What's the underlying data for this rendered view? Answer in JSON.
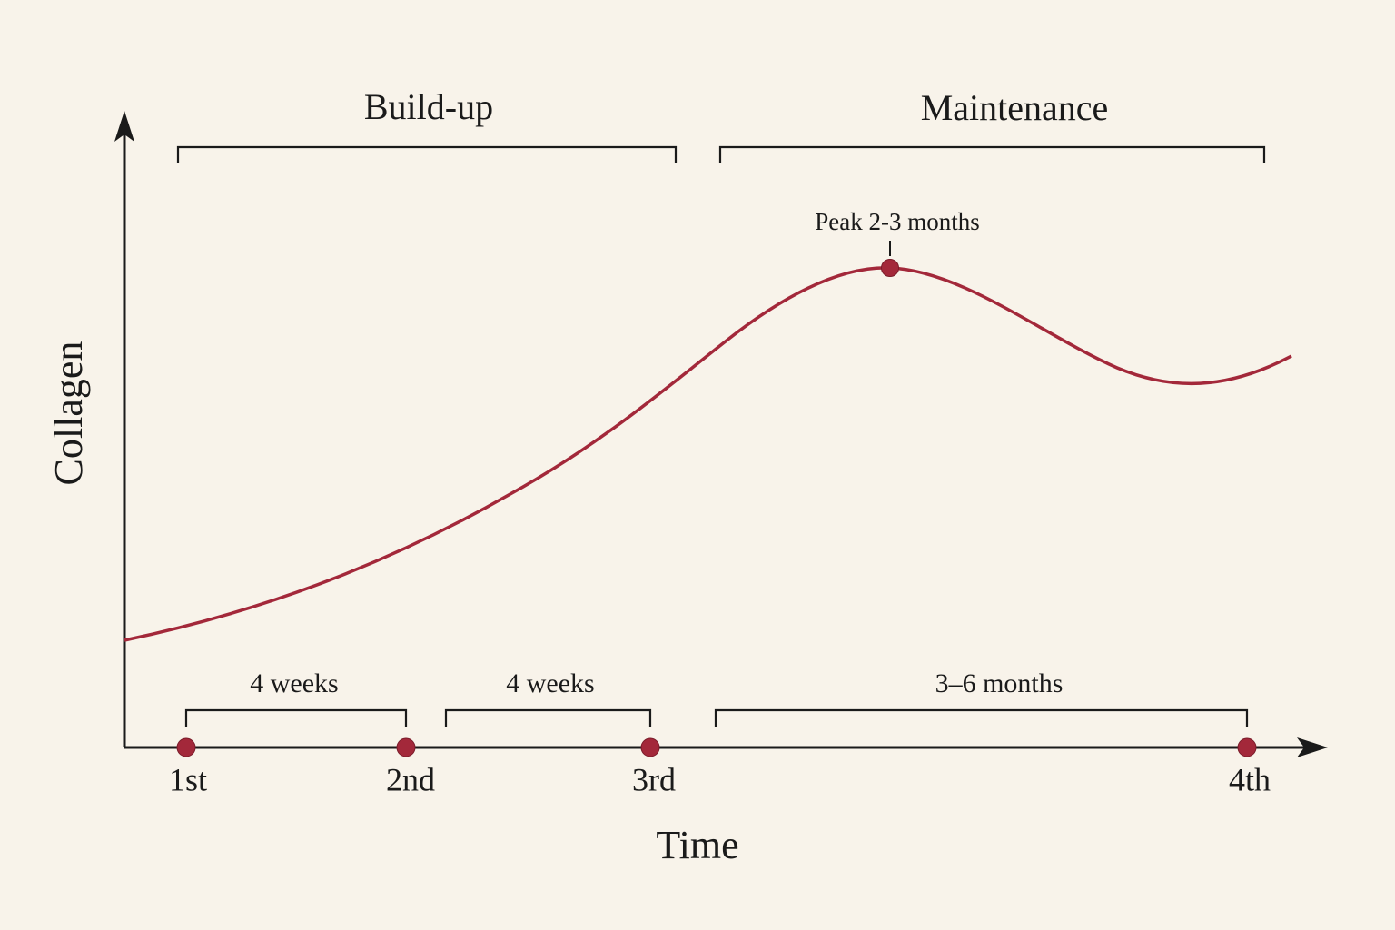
{
  "phases": [
    {
      "label": "Build-up"
    },
    {
      "label": "Maintenance"
    }
  ],
  "peak_label": "Peak 2-3 months",
  "intervals": [
    {
      "label": "4 weeks"
    },
    {
      "label": "4 weeks"
    },
    {
      "label": "3–6 months"
    }
  ],
  "sessions": [
    "1st",
    "2nd",
    "3rd",
    "4th"
  ],
  "axes": {
    "x_label": "Time",
    "y_label": "Collagen"
  }
}
